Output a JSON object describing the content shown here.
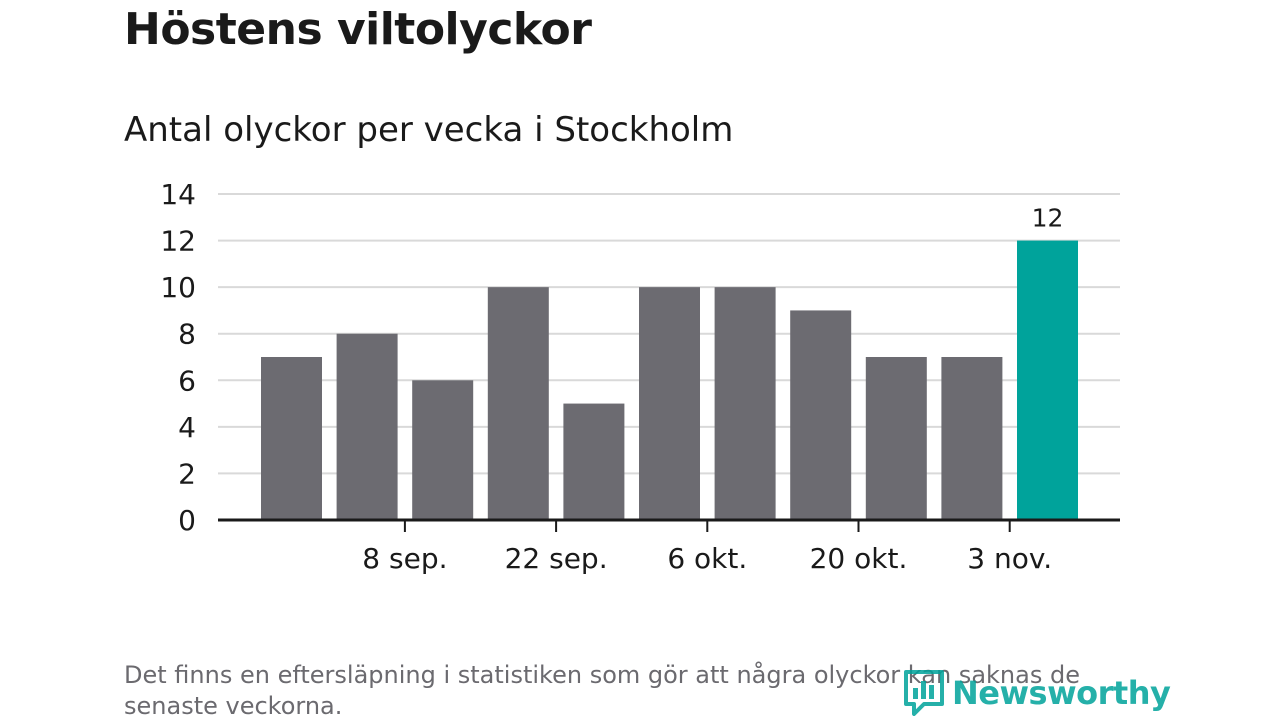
{
  "colors": {
    "bar": "#6c6b71",
    "highlight": "#00a39b",
    "grid": "#d9d9d9",
    "axis": "#1a1a1a",
    "text": "#1a1a1a",
    "footnote": "#6b6a6f"
  },
  "chart_data": {
    "type": "bar",
    "title": "Höstens viltolyckor",
    "subtitle": "Antal olyckor per vecka i Stockholm",
    "values": [
      7,
      8,
      6,
      10,
      5,
      10,
      10,
      9,
      7,
      7,
      12
    ],
    "highlight_index": 10,
    "data_labels": [
      {
        "index": 10,
        "text": "12"
      }
    ],
    "x_tick_labels": [
      {
        "after_bar": 1,
        "label": "8 sep."
      },
      {
        "after_bar": 3,
        "label": "22 sep."
      },
      {
        "after_bar": 5,
        "label": "6 okt."
      },
      {
        "after_bar": 7,
        "label": "20 okt."
      },
      {
        "after_bar": 9,
        "label": "3 nov."
      }
    ],
    "yticks": [
      0,
      2,
      4,
      6,
      8,
      10,
      12,
      14
    ],
    "ylim": [
      0,
      14
    ],
    "grid": true,
    "xlabel": "",
    "ylabel": ""
  },
  "footnote": "Det finns en eftersläpning i statistiken som gör att några olyckor kan saknas de senaste veckorna.",
  "logo": {
    "text": "Newsworthy",
    "icon": "newsworthy-logo-icon"
  }
}
